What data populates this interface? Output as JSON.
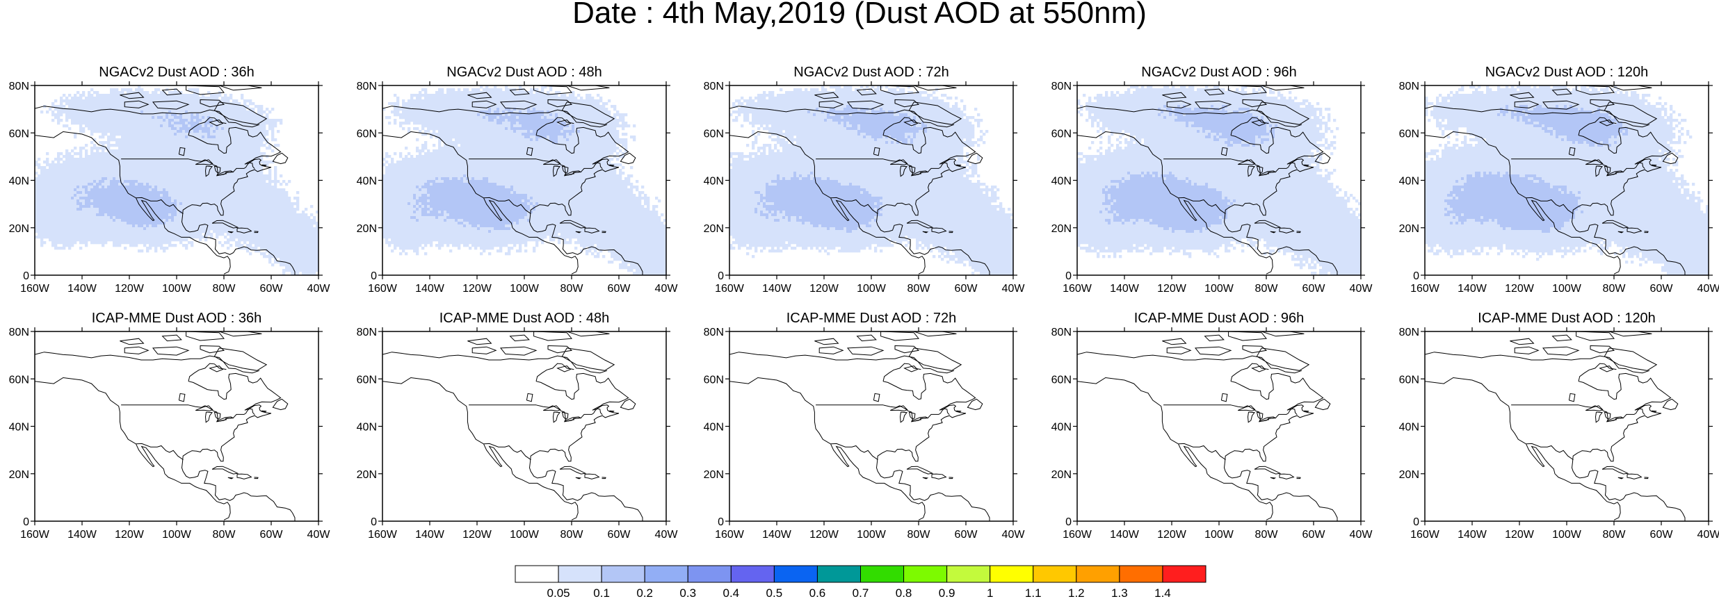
{
  "title": "Date : 4th May,2019 (Dust AOD at 550nm)",
  "rows": [
    {
      "model": "NGACv2",
      "panels": [
        {
          "title": "NGACv2 Dust AOD : 36h",
          "lead": "36h",
          "coverage": 0.55
        },
        {
          "title": "NGACv2 Dust AOD : 48h",
          "lead": "48h",
          "coverage": 0.65
        },
        {
          "title": "NGACv2 Dust AOD : 72h",
          "lead": "72h",
          "coverage": 0.7
        },
        {
          "title": "NGACv2 Dust AOD : 96h",
          "lead": "96h",
          "coverage": 0.75
        },
        {
          "title": "NGACv2 Dust AOD : 120h",
          "lead": "120h",
          "coverage": 0.8
        }
      ]
    },
    {
      "model": "ICAP-MME",
      "panels": [
        {
          "title": "ICAP-MME Dust AOD : 36h",
          "lead": "36h",
          "coverage": 0.04
        },
        {
          "title": "ICAP-MME Dust AOD : 48h",
          "lead": "48h",
          "coverage": 0.04
        },
        {
          "title": "ICAP-MME Dust AOD : 72h",
          "lead": "72h",
          "coverage": 0.06
        },
        {
          "title": "ICAP-MME Dust AOD : 96h",
          "lead": "96h",
          "coverage": 0.07
        },
        {
          "title": "ICAP-MME Dust AOD : 120h",
          "lead": "120h",
          "coverage": 0.09
        }
      ]
    }
  ],
  "lat_ticks": [
    "80N",
    "60N",
    "40N",
    "20N",
    "0"
  ],
  "lon_ticks": [
    "160W",
    "140W",
    "120W",
    "100W",
    "80W",
    "60W",
    "40W"
  ],
  "domain": {
    "lon_min": -160,
    "lon_max": -40,
    "lat_min": 0,
    "lat_max": 80
  },
  "colorbar": {
    "levels": [
      "0.05",
      "0.1",
      "0.2",
      "0.3",
      "0.4",
      "0.5",
      "0.6",
      "0.7",
      "0.8",
      "0.9",
      "1",
      "1.1",
      "1.2",
      "1.3",
      "1.4"
    ],
    "colors": [
      "#ffffff",
      "#d6e2fb",
      "#b3c6f6",
      "#92aef5",
      "#7d94f1",
      "#6464f0",
      "#0a64f2",
      "#009898",
      "#32dc00",
      "#7dfa00",
      "#c3fa3c",
      "#ffff00",
      "#ffc800",
      "#ffa000",
      "#ff6e00",
      "#ff1e1e"
    ]
  }
}
